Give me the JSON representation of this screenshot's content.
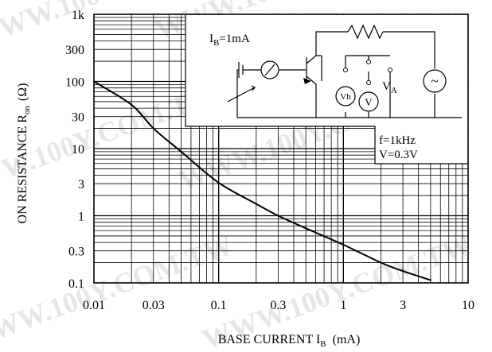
{
  "watermark": "WWW.100Y.COM.TW",
  "chart_data": {
    "type": "line",
    "xscale": "log",
    "yscale": "log",
    "xlim": [
      0.01,
      10
    ],
    "ylim": [
      0.1,
      1000
    ],
    "xlabel_main": "BASE CURRENT I",
    "xlabel_sub": "B",
    "xlabel_unit": "(mA)",
    "ylabel_main": "ON RESISTANCE R",
    "ylabel_sub": "on",
    "ylabel_unit": "(Ω)",
    "xticks": [
      {
        "value": 0.01,
        "label": "0.01"
      },
      {
        "value": 0.03,
        "label": "0.03"
      },
      {
        "value": 0.1,
        "label": "0.1"
      },
      {
        "value": 0.3,
        "label": "0.3"
      },
      {
        "value": 1,
        "label": "1"
      },
      {
        "value": 3,
        "label": "3"
      },
      {
        "value": 10,
        "label": "10"
      }
    ],
    "yticks": [
      {
        "value": 0.1,
        "label": "0.1"
      },
      {
        "value": 0.3,
        "label": "0.3"
      },
      {
        "value": 1,
        "label": "1"
      },
      {
        "value": 3,
        "label": "3"
      },
      {
        "value": 10,
        "label": "10"
      },
      {
        "value": 30,
        "label": "30"
      },
      {
        "value": 100,
        "label": "100"
      },
      {
        "value": 300,
        "label": "300"
      },
      {
        "value": 1000,
        "label": "1k"
      }
    ],
    "series": [
      {
        "color": "#000000",
        "points": [
          {
            "x": 0.01,
            "y": 100
          },
          {
            "x": 0.02,
            "y": 45
          },
          {
            "x": 0.03,
            "y": 20
          },
          {
            "x": 0.05,
            "y": 9
          },
          {
            "x": 0.1,
            "y": 3.1
          },
          {
            "x": 0.2,
            "y": 1.5
          },
          {
            "x": 0.3,
            "y": 1.0
          },
          {
            "x": 0.5,
            "y": 0.65
          },
          {
            "x": 1,
            "y": 0.37
          },
          {
            "x": 2,
            "y": 0.2
          },
          {
            "x": 3,
            "y": 0.15
          },
          {
            "x": 5,
            "y": 0.11
          }
        ]
      }
    ],
    "conditions": {
      "ib_main": "I",
      "ib_sub": "B",
      "ib_value": "=1mA",
      "freq": "f=1kHz",
      "volt": "V=0.3V",
      "vh": "Vh",
      "v": "V",
      "va_main": "V",
      "va_sub": "A",
      "source": "~"
    }
  }
}
